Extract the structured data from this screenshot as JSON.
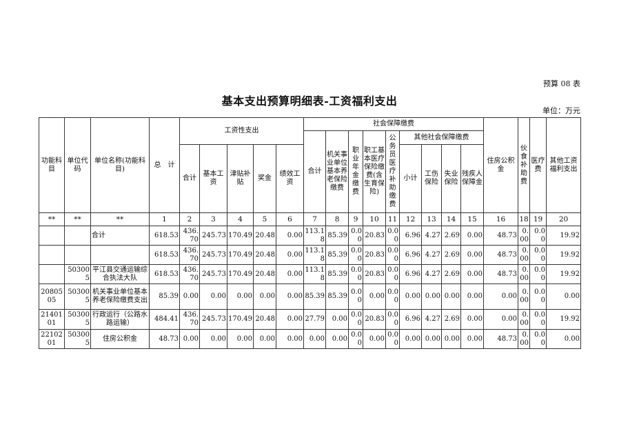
{
  "form_no": "预算 08 表",
  "title": "基本支出预算明细表-工资福利支出",
  "unit": "单位：万元",
  "headers": {
    "func_subject": "功能科目",
    "unit_code": "单位代码",
    "unit_name": "单位名称(功能科目)",
    "total": "总　计",
    "wage_group": "工资性支出",
    "wage_total": "合计",
    "basic_wage": "基本工资",
    "allowance": "津贴补贴",
    "bonus": "奖金",
    "performance": "绩效工资",
    "social_group": "社会保障缴费",
    "social_total": "合计",
    "pension": "机关事业单位基本养老保险缴费",
    "annuity": "职业年金缴费",
    "medical": "职工基本医疗保险缴费(含生育保险)",
    "civil_medical": "公务员医疗补助缴费",
    "other_social_group": "其他社会保障缴费",
    "subtotal": "小计",
    "injury": "工伤保险",
    "unemployment": "失业保险",
    "disability": "残疾人保障金",
    "housing_fund": "住房公积金",
    "meal_subsidy": "伙食补助费",
    "medical_fee": "医疗费",
    "other_welfare": "其他工资福利支出"
  },
  "column_numbers": [
    "**",
    "**",
    "**",
    "1",
    "2",
    "3",
    "4",
    "5",
    "6",
    "7",
    "8",
    "9",
    "10",
    "11",
    "12",
    "13",
    "14",
    "15",
    "16",
    "18",
    "19",
    "20"
  ],
  "rows": [
    [
      "",
      "",
      "合计",
      "618.53",
      "436.70",
      "245.73",
      "170.49",
      "20.48",
      "0.00",
      "113.18",
      "85.39",
      "0.00",
      "20.83",
      "0.00",
      "6.96",
      "4.27",
      "2.69",
      "0.00",
      "48.73",
      "0.00",
      "0.00",
      "19.92"
    ],
    [
      "",
      "",
      "",
      "618.53",
      "436.70",
      "245.73",
      "170.49",
      "20.48",
      "0.00",
      "113.18",
      "85.39",
      "0.00",
      "20.83",
      "0.00",
      "6.96",
      "4.27",
      "2.69",
      "0.00",
      "48.73",
      "0.00",
      "0.00",
      "19.92"
    ],
    [
      "",
      "503005",
      "平江县交通运输综合执法大队",
      "618.53",
      "436.70",
      "245.73",
      "170.49",
      "20.48",
      "0.00",
      "113.18",
      "85.39",
      "0.00",
      "20.83",
      "0.00",
      "6.96",
      "4.27",
      "2.69",
      "0.00",
      "48.73",
      "0.00",
      "0.00",
      "19.92"
    ],
    [
      "2080505",
      "503005",
      "机关事业单位基本养老保险缴费支出",
      "85.39",
      "0.00",
      "0.00",
      "0.00",
      "0.00",
      "0.00",
      "85.39",
      "85.39",
      "0.00",
      "0.00",
      "0.00",
      "0.00",
      "0.00",
      "0.00",
      "0.00",
      "0.00",
      "0.00",
      "0.00",
      "0.00"
    ],
    [
      "2140101",
      "503005",
      "行政运行（公路水路运输）",
      "484.41",
      "436.70",
      "245.73",
      "170.49",
      "20.48",
      "0.00",
      "27.79",
      "0.00",
      "0.00",
      "20.83",
      "0.00",
      "6.96",
      "4.27",
      "2.69",
      "0.00",
      "0.00",
      "0.00",
      "0.00",
      "19.92"
    ],
    [
      "2210201",
      "503005",
      "住房公积金",
      "48.73",
      "0.00",
      "0.00",
      "0.00",
      "0.00",
      "0.00",
      "0.00",
      "0.00",
      "0.00",
      "0.00",
      "0.00",
      "0.00",
      "0.00",
      "0.00",
      "0.00",
      "48.73",
      "0.00",
      "0.00",
      "0.00"
    ]
  ]
}
